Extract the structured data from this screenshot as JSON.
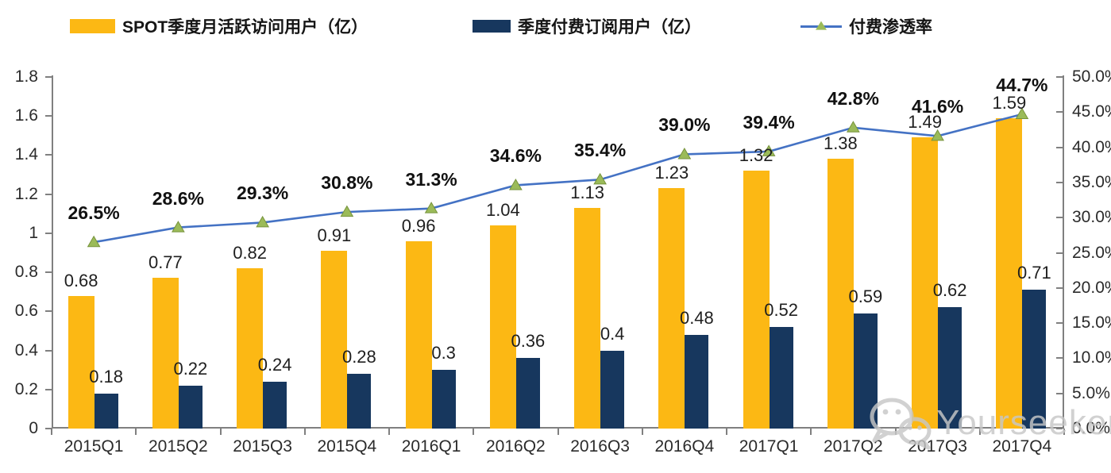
{
  "legend": {
    "position": "top"
  },
  "chart_data": {
    "type": "bar",
    "title": "",
    "categories": [
      "2015Q1",
      "2015Q2",
      "2015Q3",
      "2015Q4",
      "2016Q1",
      "2016Q2",
      "2016Q3",
      "2016Q4",
      "2017Q1",
      "2017Q2",
      "2017Q3",
      "2017Q4"
    ],
    "series": [
      {
        "name": "SPOT季度月活跃访问用户（亿）",
        "type": "bar",
        "axis": "left",
        "color": "#FCB814",
        "values": [
          0.68,
          0.77,
          0.82,
          0.91,
          0.96,
          1.04,
          1.13,
          1.23,
          1.32,
          1.38,
          1.49,
          1.59
        ],
        "labels": [
          "0.68",
          "0.77",
          "0.82",
          "0.91",
          "0.96",
          "1.04",
          "1.13",
          "1.23",
          "1.32",
          "1.38",
          "1.49",
          "1.59"
        ]
      },
      {
        "name": "季度付费订阅用户（亿）",
        "type": "bar",
        "axis": "left",
        "color": "#17375E",
        "values": [
          0.18,
          0.22,
          0.24,
          0.28,
          0.3,
          0.36,
          0.4,
          0.48,
          0.52,
          0.59,
          0.62,
          0.71
        ],
        "labels": [
          "0.18",
          "0.22",
          "0.24",
          "0.28",
          "0.3",
          "0.36",
          "0.4",
          "0.48",
          "0.52",
          "0.59",
          "0.62",
          "0.71"
        ]
      },
      {
        "name": "付费渗透率",
        "type": "line",
        "axis": "right",
        "color": "#4472C4",
        "marker": "triangle-up",
        "marker_color": "#9BBB59",
        "values": [
          26.5,
          28.6,
          29.3,
          30.8,
          31.3,
          34.6,
          35.4,
          39.0,
          39.4,
          42.8,
          41.6,
          44.7
        ],
        "labels": [
          "26.5%",
          "28.6%",
          "29.3%",
          "30.8%",
          "31.3%",
          "34.6%",
          "35.4%",
          "39.0%",
          "39.4%",
          "42.8%",
          "41.6%",
          "44.7%"
        ]
      }
    ],
    "left_axis": {
      "min": 0,
      "max": 1.8,
      "ticks": [
        "0",
        "0.2",
        "0.4",
        "0.6",
        "0.8",
        "1",
        "1.2",
        "1.4",
        "1.6",
        "1.8"
      ]
    },
    "right_axis": {
      "min": 0,
      "max": 50,
      "ticks": [
        "0.0%",
        "5.0%",
        "10.0%",
        "15.0%",
        "20.0%",
        "25.0%",
        "30.0%",
        "35.0%",
        "40.0%",
        "45.0%",
        "50.0%"
      ]
    },
    "grid": false,
    "legend_position": "top"
  },
  "watermark": {
    "text": "Yourseeker",
    "icon": "wechat-icon",
    "color": "#c7c7c7"
  }
}
